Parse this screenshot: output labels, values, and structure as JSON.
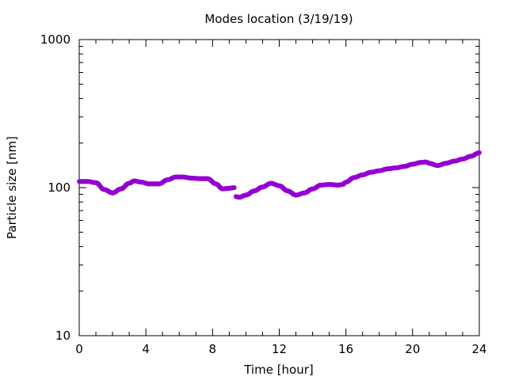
{
  "chart_data": {
    "type": "scatter",
    "title": "Modes location (3/19/19)",
    "xlabel": "Time [hour]",
    "ylabel": "Particle size [nm]",
    "xlim": [
      0,
      24
    ],
    "ylim": [
      10,
      1000
    ],
    "yscale": "log",
    "xticks": [
      0,
      4,
      8,
      12,
      16,
      20,
      24
    ],
    "xtick_labels": [
      "0",
      "4",
      "8",
      "12",
      "16",
      "20",
      "24"
    ],
    "yticks": [
      10,
      100,
      1000
    ],
    "ytick_labels": [
      "10",
      "100",
      "1000"
    ],
    "grid": false,
    "legend": "none",
    "marker_color": "#9400d3",
    "series": [
      {
        "points_x": [
          0.0,
          0.5,
          1.0,
          1.5,
          2.0,
          2.5,
          3.0,
          3.3,
          3.7,
          4.2,
          4.8,
          5.3,
          5.8,
          6.2,
          6.7,
          7.2,
          7.7,
          8.2,
          8.6,
          9.0,
          9.3,
          9.4,
          9.6,
          10.0,
          10.5,
          11.0,
          11.5,
          12.0,
          12.5,
          13.0,
          13.5,
          14.0,
          14.5,
          15.0,
          15.5,
          15.8,
          16.0,
          16.5,
          17.0,
          17.5,
          18.0,
          18.5,
          19.0,
          19.5,
          20.0,
          20.5,
          20.8,
          21.0,
          21.5,
          22.0,
          22.5,
          23.0,
          23.5,
          24.0
        ],
        "points_y": [
          110,
          110,
          108,
          97,
          92,
          98,
          107,
          111,
          109,
          106,
          106,
          113,
          118,
          118,
          116,
          115,
          115,
          106,
          98,
          99,
          100,
          87,
          86,
          89,
          95,
          101,
          107,
          103,
          95,
          89,
          92,
          98,
          104,
          105,
          104,
          105,
          109,
          117,
          122,
          127,
          130,
          134,
          136,
          139,
          144,
          148,
          149,
          146,
          141,
          146,
          151,
          156,
          163,
          172
        ]
      }
    ]
  }
}
